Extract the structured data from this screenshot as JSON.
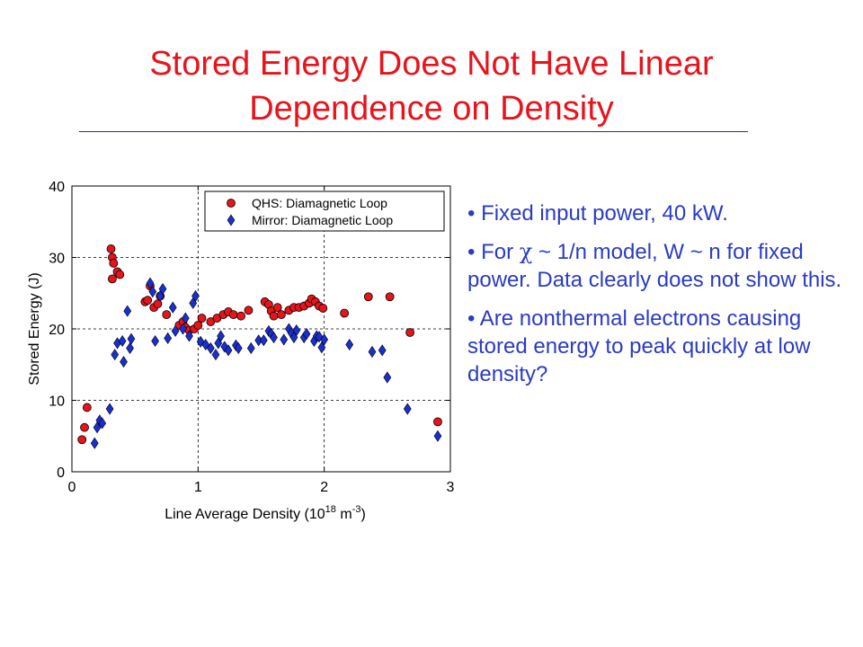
{
  "slide": {
    "title_line1": "Stored Energy Does Not Have Linear",
    "title_line2": "Dependence on Density",
    "bullets": [
      {
        "prefix": "• Fixed input power, 40 kW.",
        "chi": "",
        "suffix": ""
      },
      {
        "prefix": "• For ",
        "chi": "χ",
        "suffix": " ~ 1/n model, W ~ n for fixed power. Data clearly does not show this."
      },
      {
        "prefix": "• Are nonthermal electrons causing stored energy to peak quickly at low density?",
        "chi": "",
        "suffix": ""
      }
    ],
    "colors": {
      "title": "#e8131b",
      "bullets": "#2a3bc4",
      "rule": "#1a2fa5"
    }
  },
  "chart_data": {
    "type": "scatter",
    "xlabel_prefix": "Line Average Density (10",
    "xlabel_sup1": "18",
    "xlabel_mid": " m",
    "xlabel_sup2": "-3",
    "xlabel_suffix": ")",
    "ylabel": "Stored Energy (J)",
    "xlim": [
      0,
      3
    ],
    "ylim": [
      0,
      40
    ],
    "xticks": [
      0,
      1,
      2,
      3
    ],
    "yticks": [
      0,
      10,
      20,
      30,
      40
    ],
    "grid": true,
    "legend_position": "top-right",
    "series": [
      {
        "name": "QHS: Diamagnetic Loop",
        "marker": "circle",
        "color": "#e8131b",
        "points": [
          [
            0.08,
            4.5
          ],
          [
            0.1,
            6.2
          ],
          [
            0.12,
            9.0
          ],
          [
            0.31,
            31.2
          ],
          [
            0.32,
            30.0
          ],
          [
            0.33,
            29.2
          ],
          [
            0.32,
            27.0
          ],
          [
            0.36,
            28.0
          ],
          [
            0.38,
            27.6
          ],
          [
            0.58,
            23.8
          ],
          [
            0.6,
            24.0
          ],
          [
            0.62,
            26.0
          ],
          [
            0.65,
            23.0
          ],
          [
            0.68,
            23.5
          ],
          [
            0.7,
            24.6
          ],
          [
            0.75,
            22.0
          ],
          [
            0.85,
            20.5
          ],
          [
            0.88,
            21.0
          ],
          [
            0.9,
            20.2
          ],
          [
            0.93,
            19.8
          ],
          [
            0.97,
            20.0
          ],
          [
            1.0,
            20.5
          ],
          [
            1.03,
            21.5
          ],
          [
            1.1,
            21.0
          ],
          [
            1.15,
            21.5
          ],
          [
            1.2,
            22.0
          ],
          [
            1.24,
            22.4
          ],
          [
            1.28,
            22.0
          ],
          [
            1.34,
            21.8
          ],
          [
            1.4,
            22.6
          ],
          [
            1.53,
            23.8
          ],
          [
            1.56,
            23.4
          ],
          [
            1.58,
            22.5
          ],
          [
            1.6,
            21.8
          ],
          [
            1.63,
            23.0
          ],
          [
            1.66,
            22.0
          ],
          [
            1.72,
            22.6
          ],
          [
            1.76,
            23.0
          ],
          [
            1.8,
            23.0
          ],
          [
            1.84,
            23.2
          ],
          [
            1.88,
            23.6
          ],
          [
            1.9,
            24.2
          ],
          [
            1.93,
            23.8
          ],
          [
            1.96,
            23.2
          ],
          [
            1.99,
            22.9
          ],
          [
            2.16,
            22.2
          ],
          [
            2.35,
            24.5
          ],
          [
            2.52,
            24.5
          ],
          [
            2.68,
            19.5
          ],
          [
            2.9,
            7.0
          ]
        ]
      },
      {
        "name": "Mirror: Diamagnetic Loop",
        "marker": "diamond",
        "color": "#1a2fd0",
        "points": [
          [
            0.18,
            4.0
          ],
          [
            0.2,
            6.2
          ],
          [
            0.22,
            7.2
          ],
          [
            0.24,
            6.8
          ],
          [
            0.3,
            8.8
          ],
          [
            0.34,
            16.4
          ],
          [
            0.36,
            18.0
          ],
          [
            0.4,
            18.3
          ],
          [
            0.41,
            15.4
          ],
          [
            0.44,
            22.5
          ],
          [
            0.46,
            17.3
          ],
          [
            0.47,
            18.6
          ],
          [
            0.62,
            26.4
          ],
          [
            0.64,
            25.2
          ],
          [
            0.66,
            18.3
          ],
          [
            0.7,
            24.6
          ],
          [
            0.72,
            25.6
          ],
          [
            0.76,
            18.7
          ],
          [
            0.8,
            23.0
          ],
          [
            0.82,
            19.7
          ],
          [
            0.88,
            20.0
          ],
          [
            0.9,
            21.5
          ],
          [
            0.93,
            19.0
          ],
          [
            0.96,
            23.6
          ],
          [
            0.98,
            24.6
          ],
          [
            1.02,
            18.2
          ],
          [
            1.06,
            17.8
          ],
          [
            1.1,
            17.3
          ],
          [
            1.14,
            16.4
          ],
          [
            1.16,
            18.0
          ],
          [
            1.18,
            19.0
          ],
          [
            1.21,
            17.5
          ],
          [
            1.24,
            17.0
          ],
          [
            1.3,
            17.7
          ],
          [
            1.32,
            17.3
          ],
          [
            1.42,
            17.3
          ],
          [
            1.48,
            18.4
          ],
          [
            1.52,
            18.4
          ],
          [
            1.56,
            19.7
          ],
          [
            1.58,
            19.3
          ],
          [
            1.6,
            18.8
          ],
          [
            1.68,
            18.5
          ],
          [
            1.72,
            20.0
          ],
          [
            1.74,
            19.4
          ],
          [
            1.76,
            18.8
          ],
          [
            1.78,
            19.8
          ],
          [
            1.84,
            18.8
          ],
          [
            1.86,
            19.3
          ],
          [
            1.92,
            18.3
          ],
          [
            1.94,
            19.0
          ],
          [
            1.96,
            18.9
          ],
          [
            1.98,
            17.4
          ],
          [
            2.0,
            18.5
          ],
          [
            2.2,
            17.8
          ],
          [
            2.38,
            16.8
          ],
          [
            2.46,
            17.0
          ],
          [
            2.5,
            13.2
          ],
          [
            2.66,
            8.8
          ],
          [
            2.9,
            5.0
          ]
        ]
      }
    ]
  }
}
